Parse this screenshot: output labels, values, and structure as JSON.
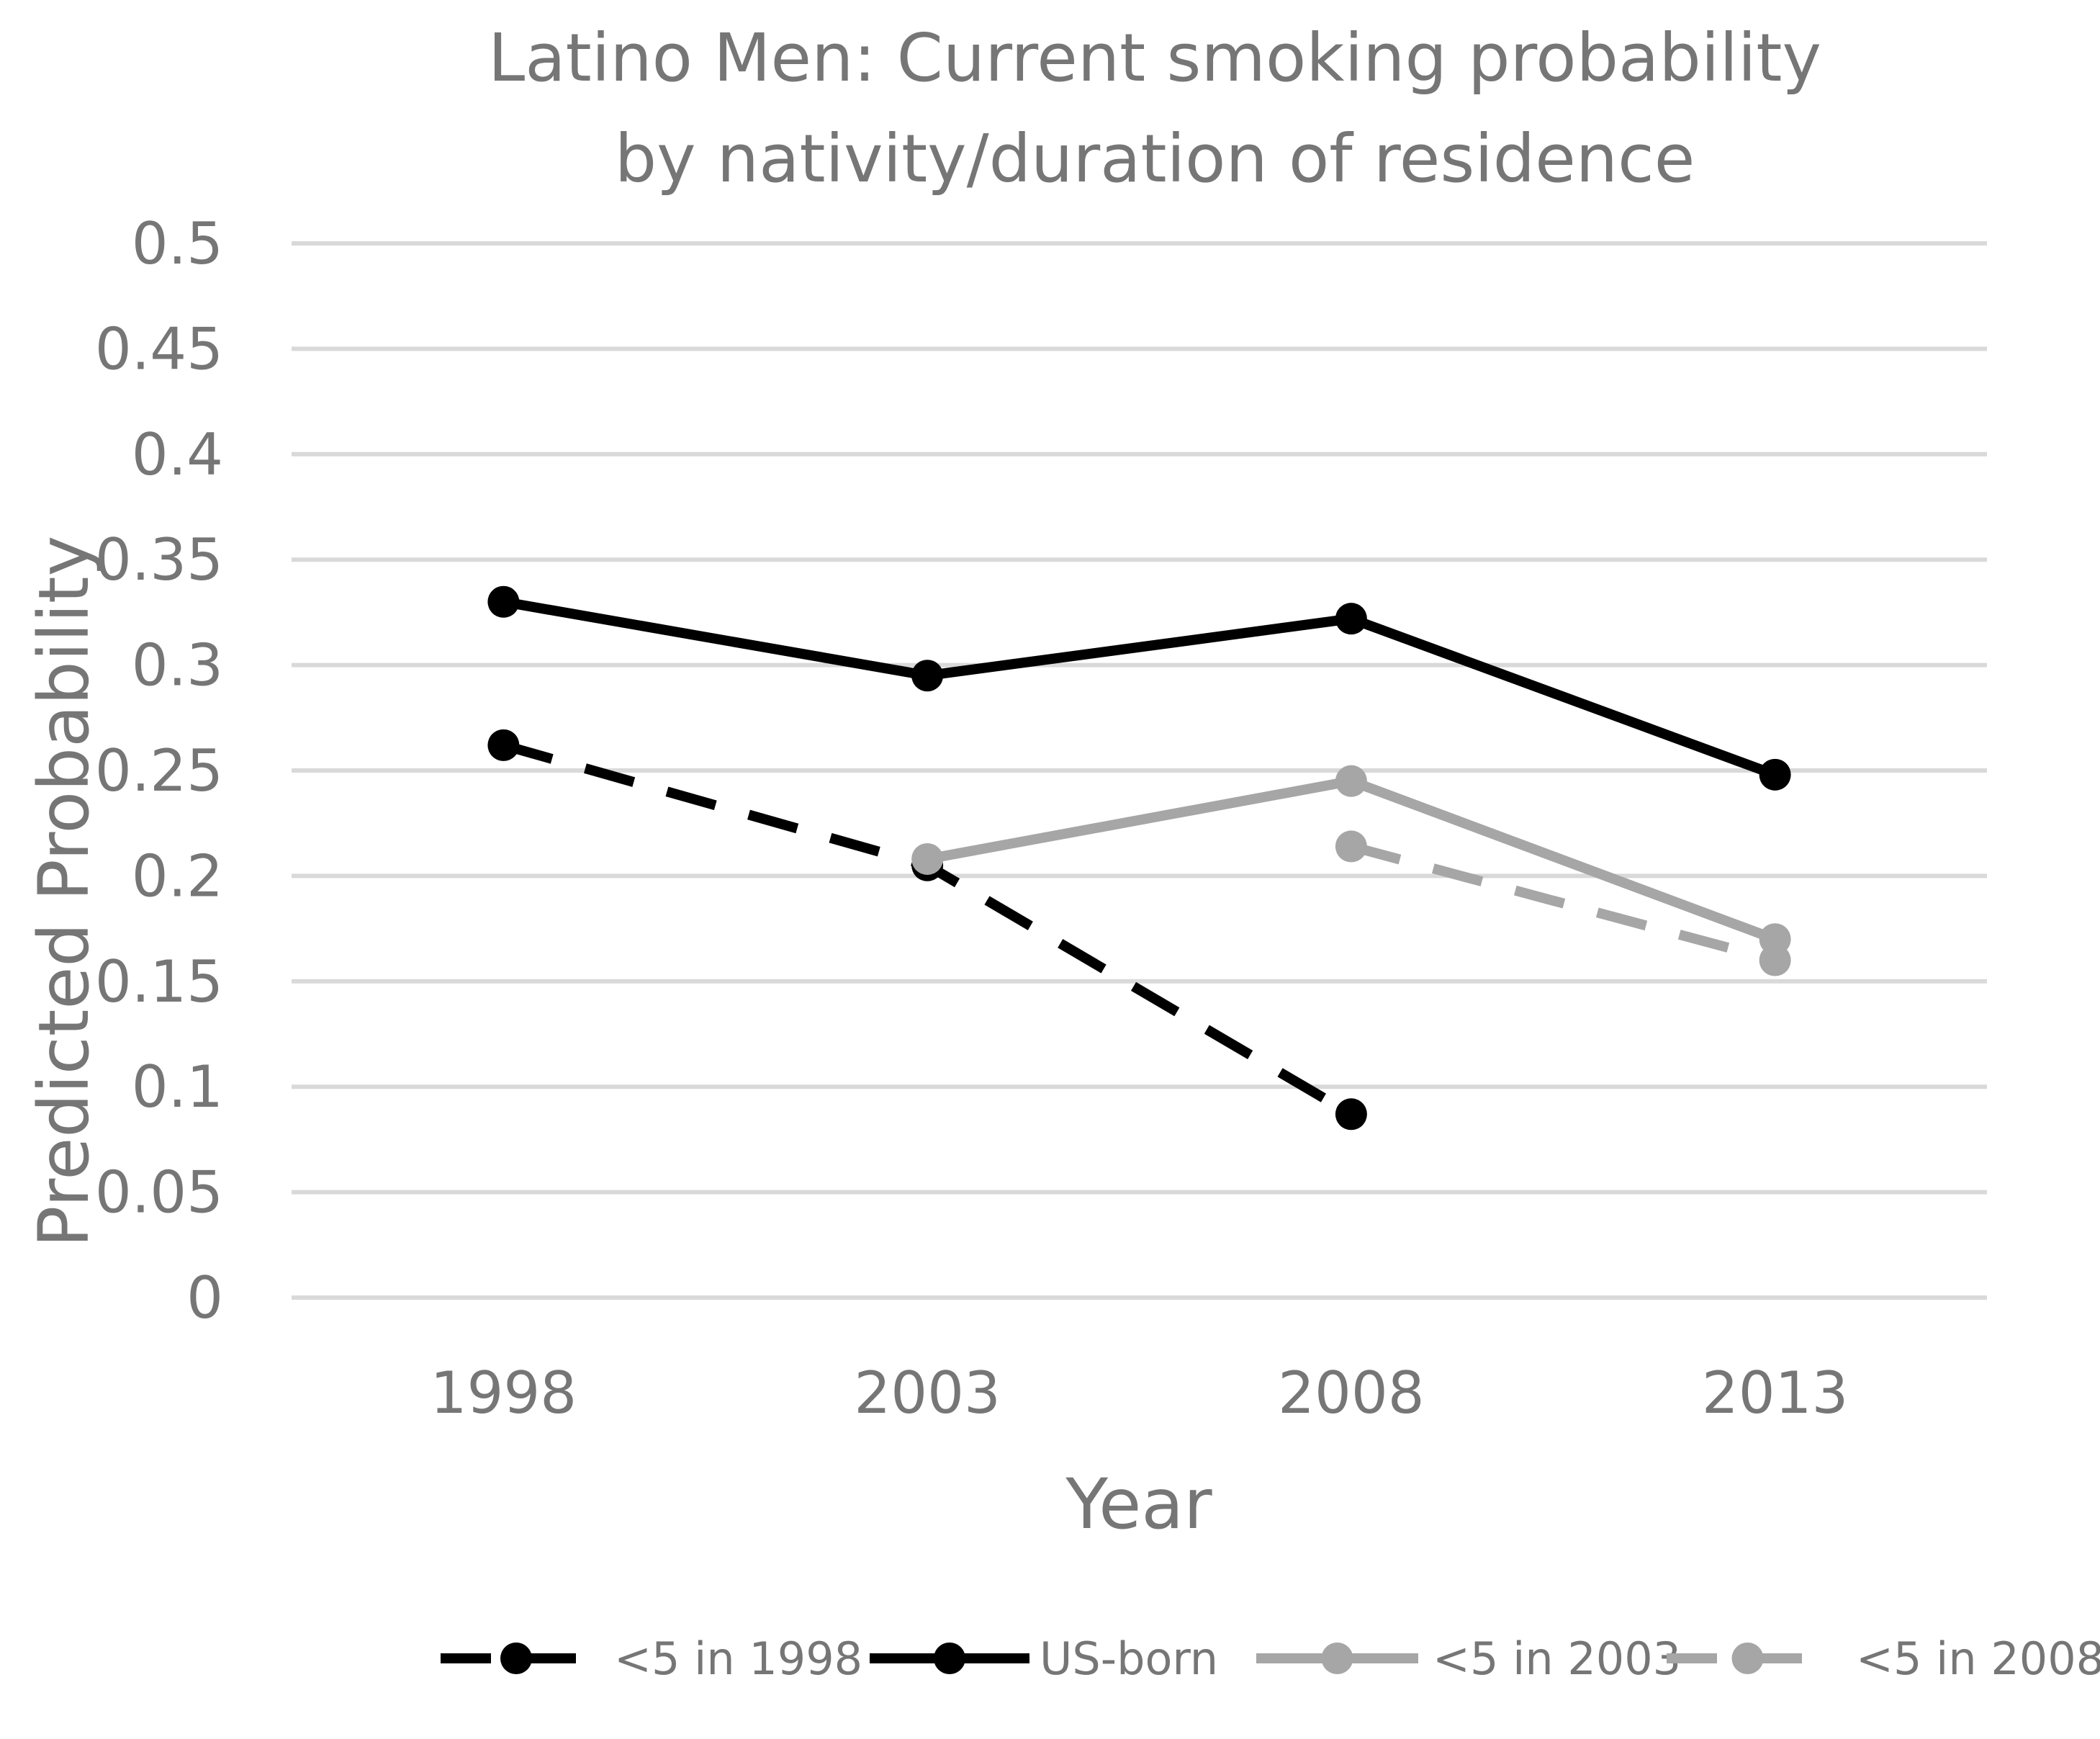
{
  "chart_data": {
    "type": "line",
    "title": [
      "Latino Men: Current smoking probability",
      "by nativity/duration of residence"
    ],
    "xlabel": "Year",
    "ylabel": "Predicted Probability",
    "categories": [
      "1998",
      "2003",
      "2008",
      "2013"
    ],
    "ylim": [
      0,
      0.5
    ],
    "yticks": [
      "0",
      "0.05",
      "0.1",
      "0.15",
      "0.2",
      "0.25",
      "0.3",
      "0.35",
      "0.4",
      "0.45",
      "0.5"
    ],
    "grid": true,
    "legend_position": "bottom",
    "series": [
      {
        "name": "<5 in 1998",
        "values": [
          0.262,
          0.205,
          0.087,
          null
        ],
        "color": "#000000",
        "dash": true
      },
      {
        "name": "US-born",
        "values": [
          0.33,
          0.295,
          0.322,
          0.248
        ],
        "color": "#000000",
        "dash": false
      },
      {
        "name": "<5 in 2003",
        "values": [
          null,
          0.208,
          0.245,
          0.17
        ],
        "color": "#a6a6a6",
        "dash": false
      },
      {
        "name": "<5 in 2008",
        "values": [
          null,
          null,
          0.214,
          0.16
        ],
        "color": "#a6a6a6",
        "dash": true
      }
    ]
  }
}
